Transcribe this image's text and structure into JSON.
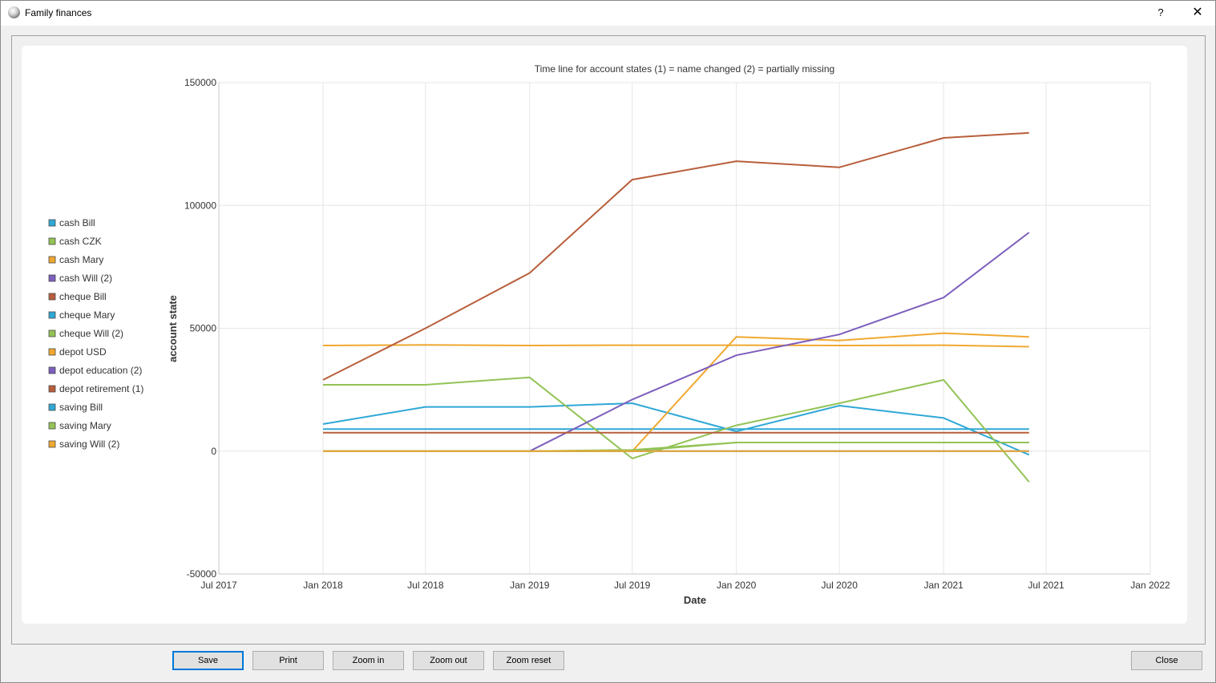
{
  "window": {
    "title": "Family finances",
    "help_label": "?",
    "close_label": "✕"
  },
  "buttons": {
    "save": "Save",
    "print": "Print",
    "zoom_in": "Zoom in",
    "zoom_out": "Zoom out",
    "zoom_reset": "Zoom reset",
    "close": "Close"
  },
  "chart_data": {
    "type": "line",
    "title": "Time line for account states (1) = name changed (2) = partially missing",
    "xlabel": "Date",
    "ylabel": "account state",
    "x_ticks": [
      "Jul 2017",
      "Jan 2018",
      "Jul 2018",
      "Jan 2019",
      "Jul 2019",
      "Jan 2020",
      "Jul 2020",
      "Jan 2021",
      "Jul 2021",
      "Jan 2022"
    ],
    "y_ticks": [
      "150000",
      "100000",
      "50000",
      "0",
      "-50000"
    ],
    "ylim": [
      -50000,
      150000
    ],
    "xlim": [
      "2017-07-01",
      "2022-01-01"
    ],
    "grid": true,
    "legend_position": "left",
    "x": [
      "2018-01-01",
      "2018-07-01",
      "2019-01-01",
      "2019-07-01",
      "2020-01-01",
      "2020-07-01",
      "2021-01-01",
      "2021-06-01"
    ],
    "series": [
      {
        "name": "cash Bill",
        "color": "#2fa8d6",
        "values": [
          9000,
          9000,
          9000,
          9000,
          9000,
          9000,
          9000,
          9000
        ]
      },
      {
        "name": "cash CZK",
        "color": "#93c356",
        "values": [
          0,
          0,
          0,
          0,
          3500,
          3500,
          3500,
          3500
        ]
      },
      {
        "name": "cash Mary",
        "color": "#f0a830",
        "values": [
          43000,
          43200,
          43000,
          43100,
          43100,
          43000,
          43100,
          42500
        ]
      },
      {
        "name": "cash Will (2)",
        "color": "#7d5fbd",
        "values": [
          0,
          0,
          0,
          0,
          0,
          0,
          0,
          0
        ]
      },
      {
        "name": "cheque Bill",
        "color": "#b85e3c",
        "values": [
          29000,
          50000,
          72500,
          110500,
          118000,
          115500,
          127500,
          129500
        ]
      },
      {
        "name": "cheque Mary",
        "color": "#2fa8d6",
        "values": [
          11000,
          18000,
          18000,
          19500,
          8000,
          18500,
          13500,
          -1500
        ]
      },
      {
        "name": "cheque Will (2)",
        "color": "#93c356",
        "values": [
          27000,
          27000,
          30000,
          -3000,
          10500,
          19500,
          29000,
          -12500
        ]
      },
      {
        "name": "depot USD",
        "color": "#f0a830",
        "values": [
          0,
          0,
          0,
          0,
          46500,
          45000,
          48000,
          46500
        ]
      },
      {
        "name": "depot education (2)",
        "color": "#7d5fbd",
        "values": [
          0,
          0,
          0,
          21000,
          39000,
          47500,
          62500,
          89000
        ]
      },
      {
        "name": "depot retirement (1)",
        "color": "#b85e3c",
        "values": [
          7500,
          7500,
          7500,
          7500,
          7500,
          7500,
          7500,
          7500
        ]
      },
      {
        "name": "saving Bill",
        "color": "#2fa8d6",
        "values": [
          0,
          0,
          0,
          0,
          0,
          0,
          0,
          0
        ]
      },
      {
        "name": "saving Mary",
        "color": "#93c356",
        "values": [
          0,
          0,
          0,
          500,
          3500,
          3500,
          3500,
          3500
        ]
      },
      {
        "name": "saving Will (2)",
        "color": "#f0a830",
        "values": [
          0,
          0,
          0,
          0,
          0,
          0,
          0,
          0
        ]
      }
    ]
  }
}
